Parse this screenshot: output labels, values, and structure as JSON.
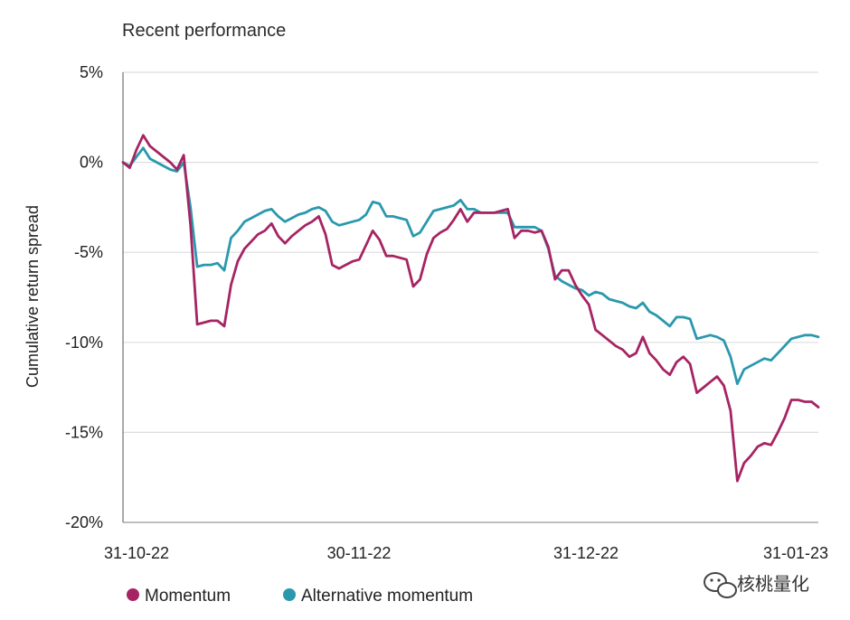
{
  "chart_data": {
    "type": "line",
    "title": "Recent performance",
    "xlabel": "",
    "ylabel": "Cumulative return spread",
    "x_ticks": [
      "31-10-22",
      "30-11-22",
      "31-12-22",
      "31-01-23"
    ],
    "y_ticks": [
      "5%",
      "0%",
      "-5%",
      "-10%",
      "-15%",
      "-20%"
    ],
    "y_tick_values": [
      5,
      0,
      -5,
      -10,
      -15,
      -20
    ],
    "ylim": [
      -20,
      5
    ],
    "grid": "horizontal",
    "legend_position": "bottom-left",
    "series": [
      {
        "name": "Momentum",
        "color": "#a62463",
        "values": [
          0.0,
          -0.3,
          0.7,
          1.5,
          0.9,
          0.6,
          0.3,
          0.0,
          -0.4,
          0.4,
          -3.5,
          -9.0,
          -8.9,
          -8.8,
          -8.8,
          -9.1,
          -6.8,
          -5.5,
          -4.8,
          -4.4,
          -4.0,
          -3.8,
          -3.4,
          -4.1,
          -4.5,
          -4.1,
          -3.8,
          -3.5,
          -3.3,
          -3.0,
          -4.0,
          -5.7,
          -5.9,
          -5.7,
          -5.5,
          -5.4,
          -4.6,
          -3.8,
          -4.3,
          -5.2,
          -5.2,
          -5.3,
          -5.4,
          -6.9,
          -6.5,
          -5.1,
          -4.2,
          -3.9,
          -3.7,
          -3.2,
          -2.6,
          -3.3,
          -2.8,
          -2.8,
          -2.8,
          -2.8,
          -2.7,
          -2.6,
          -4.2,
          -3.8,
          -3.8,
          -3.9,
          -3.8,
          -4.7,
          -6.5,
          -6.0,
          -6.0,
          -6.8,
          -7.4,
          -7.9,
          -9.3,
          -9.6,
          -9.9,
          -10.2,
          -10.4,
          -10.8,
          -10.6,
          -9.7,
          -10.6,
          -11.0,
          -11.5,
          -11.8,
          -11.1,
          -10.8,
          -11.2,
          -12.8,
          -12.5,
          -12.2,
          -11.9,
          -12.4,
          -13.8,
          -17.7,
          -16.7,
          -16.3,
          -15.8,
          -15.6,
          -15.7,
          -15.0,
          -14.2,
          -13.2,
          -13.2,
          -13.3,
          -13.3,
          -13.6
        ]
      },
      {
        "name": "Alternative momentum",
        "color": "#2a98ad",
        "values": [
          0.0,
          -0.2,
          0.3,
          0.8,
          0.2,
          0.0,
          -0.2,
          -0.4,
          -0.5,
          0.0,
          -2.5,
          -5.8,
          -5.7,
          -5.7,
          -5.6,
          -6.0,
          -4.2,
          -3.8,
          -3.3,
          -3.1,
          -2.9,
          -2.7,
          -2.6,
          -3.0,
          -3.3,
          -3.1,
          -2.9,
          -2.8,
          -2.6,
          -2.5,
          -2.7,
          -3.3,
          -3.5,
          -3.4,
          -3.3,
          -3.2,
          -2.9,
          -2.2,
          -2.3,
          -3.0,
          -3.0,
          -3.1,
          -3.2,
          -4.1,
          -3.9,
          -3.3,
          -2.7,
          -2.6,
          -2.5,
          -2.4,
          -2.1,
          -2.6,
          -2.6,
          -2.8,
          -2.8,
          -2.8,
          -2.8,
          -2.8,
          -3.6,
          -3.6,
          -3.6,
          -3.6,
          -3.8,
          -4.8,
          -6.3,
          -6.6,
          -6.8,
          -7.0,
          -7.1,
          -7.4,
          -7.2,
          -7.3,
          -7.6,
          -7.7,
          -7.8,
          -8.0,
          -8.1,
          -7.8,
          -8.3,
          -8.5,
          -8.8,
          -9.1,
          -8.6,
          -8.6,
          -8.7,
          -9.8,
          -9.7,
          -9.6,
          -9.7,
          -9.9,
          -10.8,
          -12.3,
          -11.5,
          -11.3,
          -11.1,
          -10.9,
          -11.0,
          -10.6,
          -10.2,
          -9.8,
          -9.7,
          -9.6,
          -9.6,
          -9.7
        ]
      }
    ]
  },
  "watermark": {
    "text": "核桃量化",
    "icon": "wechat-icon"
  }
}
